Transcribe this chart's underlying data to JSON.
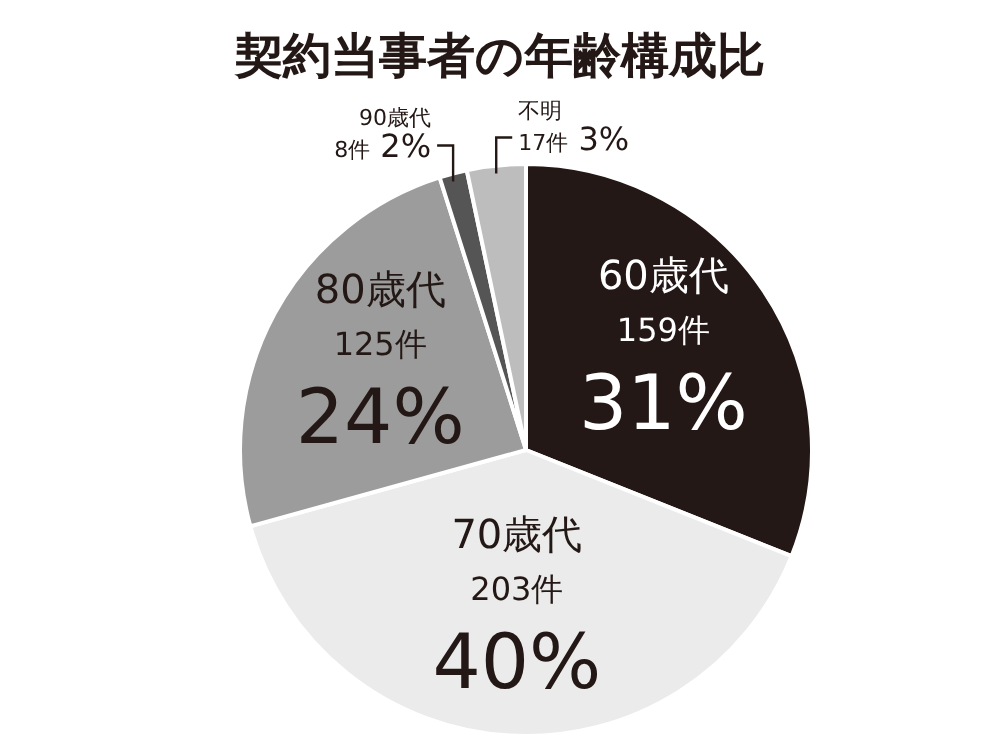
{
  "chart_data": {
    "type": "pie",
    "title": "契約当事者の年齢構成比",
    "categories": [
      "60歳代",
      "70歳代",
      "80歳代",
      "90歳代",
      "不明"
    ],
    "values": [
      159,
      203,
      125,
      8,
      17
    ],
    "value_labels": [
      "159件\n31%",
      "203件\n40%",
      "125件\n24%",
      "8件\n2%",
      "17件\n3%"
    ],
    "colors": [
      "#231815",
      "#ebebeb",
      "#9c9c9c",
      "#555555",
      "#bdbdbd"
    ],
    "legend": false
  }
}
